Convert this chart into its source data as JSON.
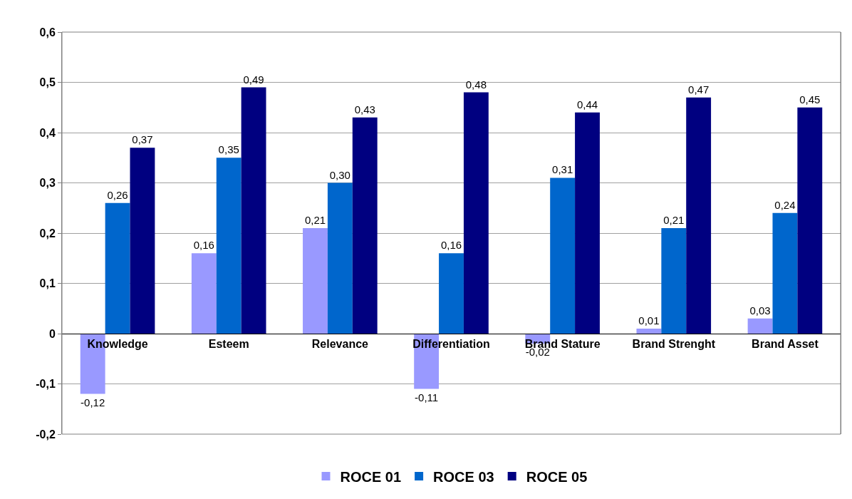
{
  "chart_data": {
    "type": "bar",
    "categories": [
      "Knowledge",
      "Esteem",
      "Relevance",
      "Differentiation",
      "Brand Stature",
      "Brand Strenght",
      "Brand Asset"
    ],
    "series": [
      {
        "name": "ROCE 01",
        "color": "#9999ff",
        "values": [
          -0.12,
          0.16,
          0.21,
          -0.11,
          -0.02,
          0.01,
          0.03
        ],
        "value_labels": [
          "-0,12",
          "0,16",
          "0,21",
          "-0,11",
          "-0,02",
          "0,01",
          "0,03"
        ]
      },
      {
        "name": "ROCE 03",
        "color": "#0066cc",
        "values": [
          0.26,
          0.35,
          0.3,
          0.16,
          0.31,
          0.21,
          0.24
        ],
        "value_labels": [
          "0,26",
          "0,35",
          "0,30",
          "0,16",
          "0,31",
          "0,21",
          "0,24"
        ]
      },
      {
        "name": "ROCE 05",
        "color": "#000080",
        "values": [
          0.37,
          0.49,
          0.43,
          0.48,
          0.44,
          0.47,
          0.45
        ],
        "value_labels": [
          "0,37",
          "0,49",
          "0,43",
          "0,48",
          "0,44",
          "0,47",
          "0,45"
        ]
      }
    ],
    "ylim": [
      -0.2,
      0.6
    ],
    "yticks": [
      {
        "value": -0.2,
        "label": "-0,2"
      },
      {
        "value": -0.1,
        "label": "-0,1"
      },
      {
        "value": 0,
        "label": "0"
      },
      {
        "value": 0.1,
        "label": "0,1"
      },
      {
        "value": 0.2,
        "label": "0,2"
      },
      {
        "value": 0.3,
        "label": "0,3"
      },
      {
        "value": 0.4,
        "label": "0,4"
      },
      {
        "value": 0.5,
        "label": "0,5"
      },
      {
        "value": 0.6,
        "label": "0,6"
      }
    ],
    "grid": "y",
    "legend": "bottom"
  }
}
